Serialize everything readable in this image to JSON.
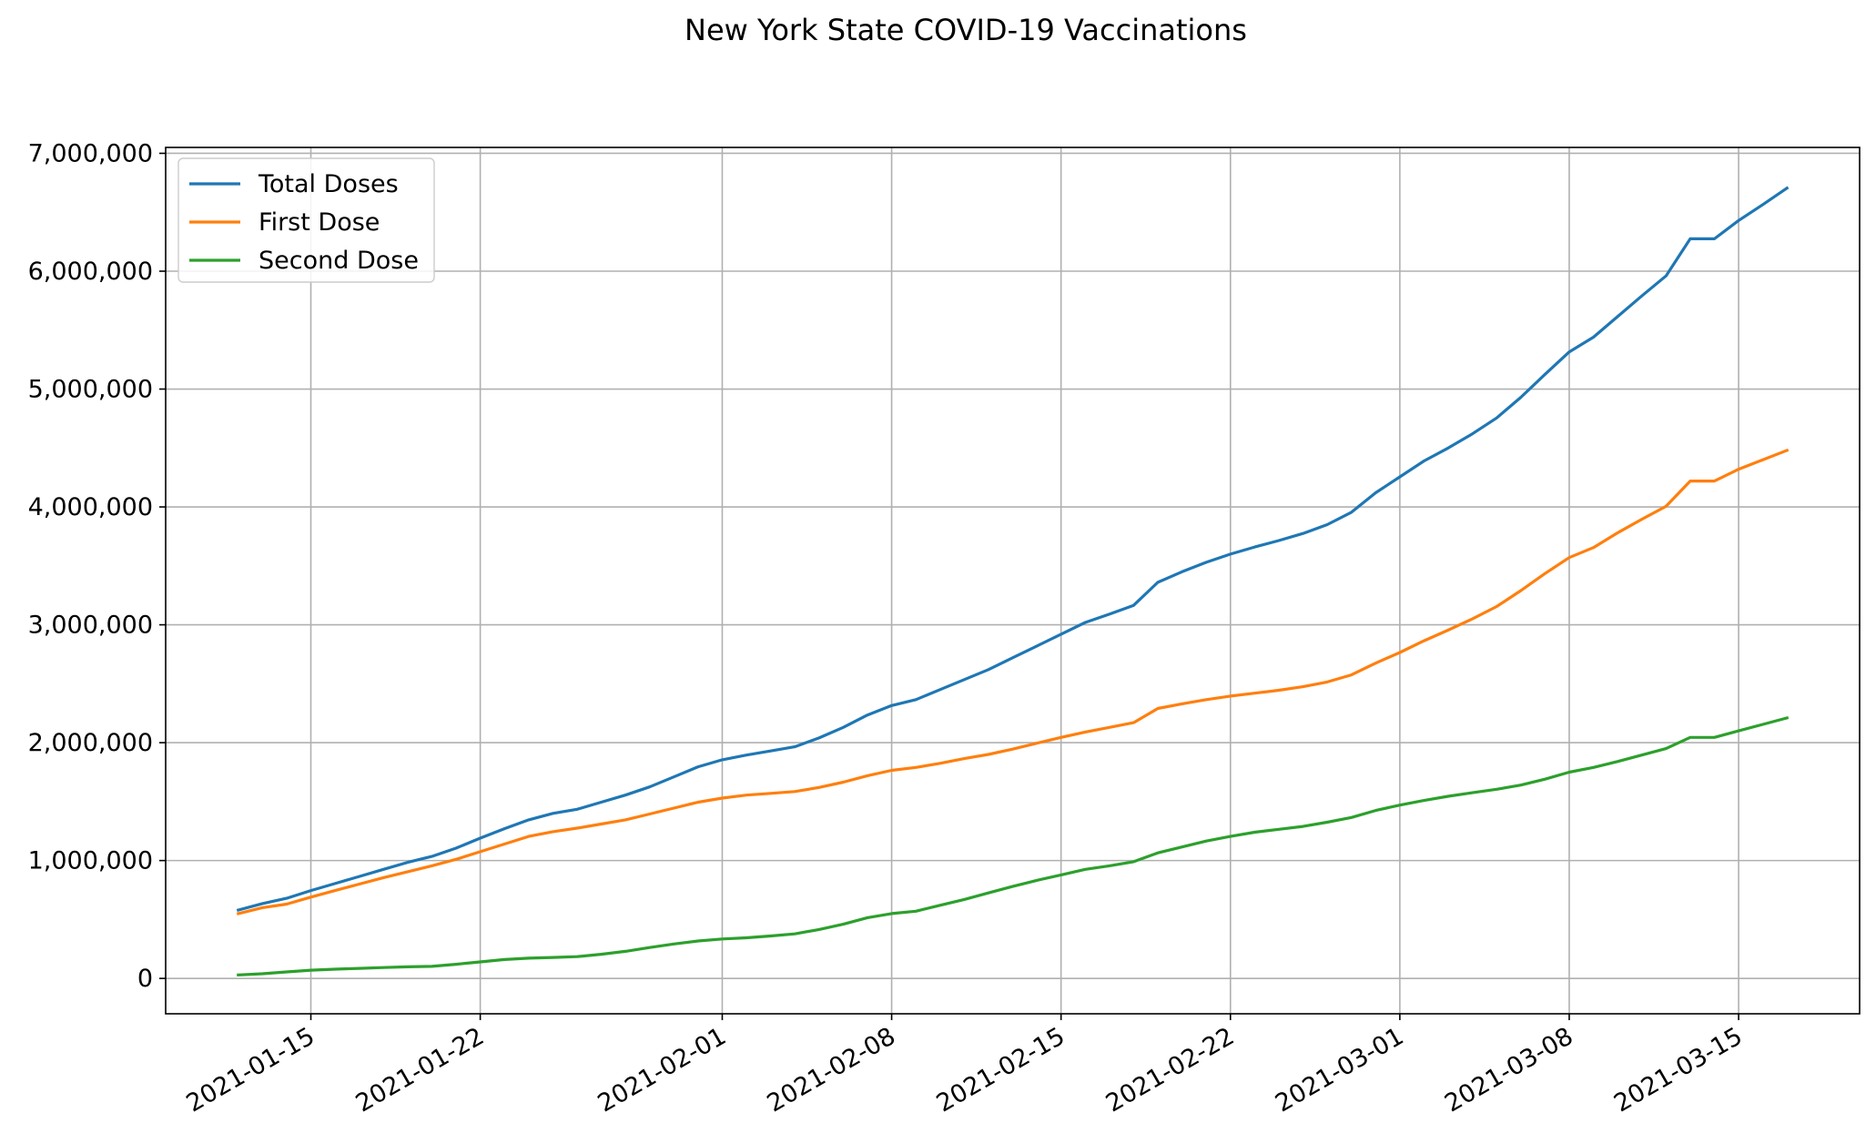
{
  "chart_data": {
    "type": "line",
    "title": "New York State COVID-19 Vaccinations",
    "xlabel": "",
    "ylabel": "",
    "x": [
      "2021-01-12",
      "2021-01-13",
      "2021-01-14",
      "2021-01-15",
      "2021-01-16",
      "2021-01-17",
      "2021-01-18",
      "2021-01-19",
      "2021-01-20",
      "2021-01-21",
      "2021-01-22",
      "2021-01-23",
      "2021-01-24",
      "2021-01-25",
      "2021-01-26",
      "2021-01-27",
      "2021-01-28",
      "2021-01-29",
      "2021-01-30",
      "2021-01-31",
      "2021-02-01",
      "2021-02-02",
      "2021-02-03",
      "2021-02-04",
      "2021-02-05",
      "2021-02-06",
      "2021-02-07",
      "2021-02-08",
      "2021-02-09",
      "2021-02-10",
      "2021-02-11",
      "2021-02-12",
      "2021-02-13",
      "2021-02-14",
      "2021-02-15",
      "2021-02-16",
      "2021-02-17",
      "2021-02-18",
      "2021-02-19",
      "2021-02-20",
      "2021-02-21",
      "2021-02-22",
      "2021-02-23",
      "2021-02-24",
      "2021-02-25",
      "2021-02-26",
      "2021-02-27",
      "2021-02-28",
      "2021-03-01",
      "2021-03-02",
      "2021-03-03",
      "2021-03-04",
      "2021-03-05",
      "2021-03-06",
      "2021-03-07",
      "2021-03-08",
      "2021-03-09",
      "2021-03-10",
      "2021-03-11",
      "2021-03-12",
      "2021-03-13",
      "2021-03-14",
      "2021-03-15",
      "2021-03-16",
      "2021-03-17"
    ],
    "series": [
      {
        "name": "Total Doses",
        "color": "#1f77b4",
        "values": [
          580000,
          635000,
          680000,
          745000,
          805000,
          865000,
          925000,
          985000,
          1035000,
          1105000,
          1190000,
          1270000,
          1345000,
          1400000,
          1435000,
          1495000,
          1555000,
          1625000,
          1710000,
          1795000,
          1855000,
          1895000,
          1930000,
          1965000,
          2040000,
          2130000,
          2235000,
          2315000,
          2365000,
          2450000,
          2535000,
          2620000,
          2720000,
          2820000,
          2920000,
          3020000,
          3090000,
          3165000,
          3360000,
          3450000,
          3530000,
          3600000,
          3660000,
          3715000,
          3775000,
          3850000,
          3955000,
          4120000,
          4255000,
          4390000,
          4500000,
          4620000,
          4755000,
          4930000,
          5125000,
          5315000,
          5440000,
          5615000,
          5790000,
          5960000,
          6275000,
          6275000,
          6430000,
          6565000,
          6705000
        ]
      },
      {
        "name": "First Dose",
        "color": "#ff7f0e",
        "values": [
          550000,
          600000,
          630000,
          690000,
          745000,
          800000,
          855000,
          905000,
          955000,
          1010000,
          1075000,
          1140000,
          1205000,
          1245000,
          1275000,
          1310000,
          1345000,
          1395000,
          1445000,
          1495000,
          1530000,
          1555000,
          1570000,
          1585000,
          1620000,
          1665000,
          1720000,
          1765000,
          1790000,
          1825000,
          1865000,
          1900000,
          1945000,
          1995000,
          2045000,
          2090000,
          2130000,
          2170000,
          2290000,
          2330000,
          2365000,
          2395000,
          2420000,
          2445000,
          2475000,
          2515000,
          2575000,
          2675000,
          2765000,
          2865000,
          2955000,
          3050000,
          3155000,
          3290000,
          3435000,
          3570000,
          3655000,
          3780000,
          3895000,
          4005000,
          4220000,
          4220000,
          4320000,
          4400000,
          4480000
        ]
      },
      {
        "name": "Second Dose",
        "color": "#2ca02c",
        "values": [
          30000,
          40000,
          55000,
          70000,
          78000,
          85000,
          92000,
          98000,
          102000,
          120000,
          140000,
          160000,
          172000,
          178000,
          185000,
          205000,
          230000,
          262000,
          292000,
          318000,
          335000,
          345000,
          360000,
          378000,
          415000,
          460000,
          515000,
          550000,
          570000,
          620000,
          670000,
          725000,
          780000,
          832000,
          878000,
          925000,
          955000,
          990000,
          1065000,
          1115000,
          1165000,
          1205000,
          1240000,
          1265000,
          1290000,
          1325000,
          1365000,
          1425000,
          1470000,
          1510000,
          1545000,
          1575000,
          1605000,
          1640000,
          1690000,
          1750000,
          1790000,
          1840000,
          1895000,
          1950000,
          2045000,
          2045000,
          2100000,
          2155000,
          2210000
        ]
      }
    ],
    "x_ticks": [
      "2021-01-15",
      "2021-01-22",
      "2021-02-01",
      "2021-02-08",
      "2021-02-15",
      "2021-02-22",
      "2021-03-01",
      "2021-03-08",
      "2021-03-15"
    ],
    "y_ticks": [
      0,
      1000000,
      2000000,
      3000000,
      4000000,
      5000000,
      6000000,
      7000000
    ],
    "y_tick_labels": [
      "0",
      "1,000,000",
      "2,000,000",
      "3,000,000",
      "4,000,000",
      "5,000,000",
      "6,000,000",
      "7,000,000"
    ],
    "xlim": [
      "2021-01-09",
      "2021-03-20"
    ],
    "ylim": [
      -300000,
      7050000
    ],
    "grid": true,
    "legend_position": "top-left"
  }
}
